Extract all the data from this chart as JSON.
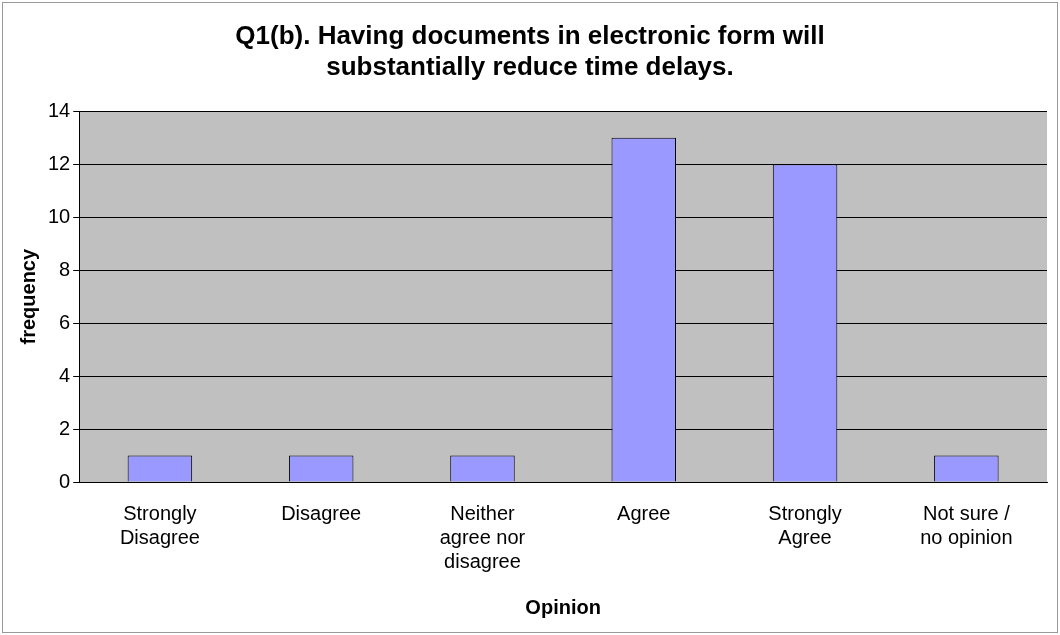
{
  "chart_data": {
    "type": "bar",
    "title": "Q1(b). Having documents in electronic form will substantially reduce time delays.",
    "xlabel": "Opinion",
    "ylabel": "frequency",
    "categories": [
      "Strongly Disagree",
      "Disagree",
      "Neither agree nor disagree",
      "Agree",
      "Strongly Agree",
      "Not sure / no opinion"
    ],
    "values": [
      1,
      1,
      1,
      13,
      12,
      1
    ],
    "color": "#9999ff",
    "ylim": [
      0,
      14
    ],
    "yticks": [
      0,
      2,
      4,
      6,
      8,
      10,
      12,
      14
    ],
    "grid": "y",
    "legend": false
  }
}
